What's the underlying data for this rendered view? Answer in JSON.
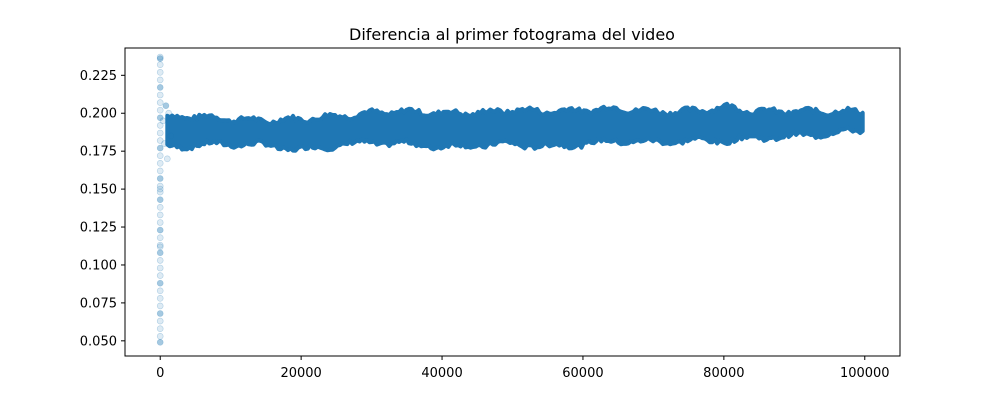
{
  "chart_data": {
    "type": "scatter",
    "title": "Diferencia al primer fotograma del video",
    "xlabel": "",
    "ylabel": "",
    "xlim": [
      -5000,
      105000
    ],
    "ylim": [
      0.04,
      0.243
    ],
    "xticks": [
      0,
      20000,
      40000,
      60000,
      80000,
      100000
    ],
    "xtick_labels": [
      "0",
      "20000",
      "40000",
      "60000",
      "80000",
      "100000"
    ],
    "yticks": [
      0.05,
      0.075,
      0.1,
      0.125,
      0.15,
      0.175,
      0.2,
      0.225
    ],
    "ytick_labels": [
      "0.050",
      "0.075",
      "0.100",
      "0.125",
      "0.150",
      "0.175",
      "0.200",
      "0.225"
    ],
    "grid": false,
    "legend": false,
    "marker_color": "#1f77b4",
    "marker_alpha": 0.15,
    "series": [
      {
        "startup_points": [
          [
            0,
            0.049
          ],
          [
            0,
            0.053
          ],
          [
            0,
            0.058
          ],
          [
            0,
            0.063
          ],
          [
            0,
            0.068
          ],
          [
            0,
            0.073
          ],
          [
            0,
            0.078
          ],
          [
            0,
            0.083
          ],
          [
            0,
            0.088
          ],
          [
            0,
            0.093
          ],
          [
            0,
            0.098
          ],
          [
            0,
            0.103
          ],
          [
            0,
            0.108
          ],
          [
            0,
            0.112
          ],
          [
            0,
            0.113
          ],
          [
            0,
            0.118
          ],
          [
            0,
            0.123
          ],
          [
            0,
            0.128
          ],
          [
            0,
            0.133
          ],
          [
            0,
            0.138
          ],
          [
            0,
            0.143
          ],
          [
            0,
            0.148
          ],
          [
            0,
            0.15
          ],
          [
            0,
            0.152
          ],
          [
            0,
            0.157
          ],
          [
            0,
            0.162
          ],
          [
            0,
            0.167
          ],
          [
            0,
            0.172
          ],
          [
            0,
            0.177
          ],
          [
            0,
            0.182
          ],
          [
            0,
            0.187
          ],
          [
            0,
            0.192
          ],
          [
            0,
            0.197
          ],
          [
            0,
            0.202
          ],
          [
            0,
            0.207
          ],
          [
            0,
            0.212
          ],
          [
            0,
            0.217
          ],
          [
            0,
            0.222
          ],
          [
            0,
            0.227
          ],
          [
            0,
            0.232
          ],
          [
            0,
            0.236
          ],
          [
            0,
            0.237
          ],
          [
            400,
            0.195
          ],
          [
            600,
            0.18
          ],
          [
            800,
            0.205
          ],
          [
            1000,
            0.17
          ],
          [
            1200,
            0.2
          ],
          [
            1500,
            0.185
          ]
        ],
        "band": {
          "x": [
            1000,
            5000,
            10000,
            15000,
            20000,
            25000,
            30000,
            35000,
            40000,
            45000,
            50000,
            55000,
            60000,
            65000,
            70000,
            75000,
            80000,
            85000,
            90000,
            95000,
            100000
          ],
          "upper": [
            0.197,
            0.198,
            0.196,
            0.195,
            0.196,
            0.198,
            0.2,
            0.201,
            0.2,
            0.2,
            0.202,
            0.201,
            0.202,
            0.203,
            0.201,
            0.201,
            0.204,
            0.201,
            0.201,
            0.201,
            0.201
          ],
          "lower": [
            0.178,
            0.179,
            0.18,
            0.179,
            0.176,
            0.179,
            0.181,
            0.18,
            0.178,
            0.179,
            0.18,
            0.178,
            0.18,
            0.182,
            0.181,
            0.182,
            0.182,
            0.184,
            0.185,
            0.187,
            0.189
          ]
        }
      }
    ]
  }
}
